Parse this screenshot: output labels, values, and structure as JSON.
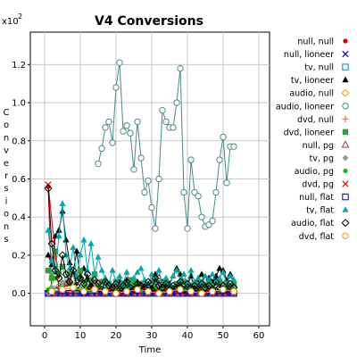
{
  "chart_data": {
    "type": "line",
    "title": "V4 Conversions",
    "xlabel": "Time",
    "ylabel": "Conversions",
    "y_multiplier": "x10",
    "y_exponent": "2",
    "xlim": [
      -4,
      63
    ],
    "ylim": [
      -0.17,
      1.37
    ],
    "x_ticks": [
      "0",
      "10",
      "20",
      "30",
      "40",
      "50",
      "60"
    ],
    "y_ticks": [
      "0.0",
      "0.2",
      "0.4",
      "0.6",
      "0.8",
      "1.0",
      "1.2"
    ],
    "grid": true,
    "legend_position": "right",
    "series": [
      {
        "name": "null, null",
        "color": "#e00000",
        "marker": "dot",
        "x": [
          1,
          2,
          3,
          4,
          5,
          6,
          7,
          8,
          9,
          10,
          11,
          12,
          13,
          14,
          15,
          16,
          17,
          18,
          19,
          20,
          21,
          22,
          23,
          24,
          25,
          26,
          27,
          28,
          29,
          30,
          31,
          32,
          33,
          34,
          35,
          36,
          37,
          38,
          39,
          40,
          41,
          42,
          43,
          44,
          45,
          46,
          47,
          48,
          49,
          50,
          51,
          52,
          53
        ],
        "y": [
          0.56,
          0,
          0,
          0,
          0,
          0,
          0,
          0,
          0,
          0,
          0,
          0,
          0,
          0,
          0,
          0,
          0,
          0,
          0,
          0,
          0,
          0,
          0,
          0,
          0,
          0,
          0,
          0,
          0,
          0,
          0,
          0,
          0,
          0,
          0,
          0,
          0,
          0,
          0,
          0,
          0,
          0,
          0,
          0,
          0,
          0,
          0,
          0,
          0,
          0,
          0,
          0,
          0
        ]
      },
      {
        "name": "null, lioneer",
        "color": "#0000cc",
        "marker": "x",
        "x": [
          1,
          3,
          5,
          7,
          9,
          11,
          13,
          15,
          17,
          19,
          21,
          23,
          25,
          27,
          29,
          31,
          33,
          35,
          37,
          39,
          41,
          43,
          45,
          47,
          49,
          51,
          53
        ],
        "y": [
          0,
          0,
          0,
          0,
          0,
          0,
          0,
          0,
          0,
          0,
          0,
          0,
          0,
          0,
          0,
          0,
          0,
          0,
          0,
          0,
          0,
          0,
          0,
          0,
          0,
          0,
          0
        ]
      },
      {
        "name": "tv, null",
        "color": "#009090",
        "marker": "square",
        "x": [
          1,
          3,
          5,
          7,
          9,
          11,
          13,
          15,
          17,
          19,
          21,
          23,
          25,
          27,
          29,
          31,
          33,
          35,
          37,
          39,
          41,
          43,
          45,
          47,
          49,
          51,
          53
        ],
        "y": [
          0,
          0.01,
          0,
          0,
          0.01,
          0,
          0,
          0,
          0,
          0,
          0,
          0,
          0,
          0.01,
          0,
          0,
          0,
          0,
          0,
          0,
          0,
          0,
          0,
          0,
          0,
          0,
          0
        ]
      },
      {
        "name": "tv, lioneer",
        "color": "#000000",
        "marker": "tri",
        "x": [
          1,
          2,
          3,
          4,
          5,
          6,
          7,
          8,
          9,
          10,
          11,
          12,
          13,
          14,
          15,
          16,
          17,
          18,
          19,
          20,
          21,
          22,
          23,
          24,
          25,
          26,
          27,
          28,
          29,
          30,
          31,
          32,
          33,
          34,
          35,
          36,
          37,
          38,
          39,
          40,
          41,
          42,
          43,
          44,
          45,
          46,
          47,
          48,
          49,
          50,
          51,
          52,
          53
        ],
        "y": [
          0.2,
          0.15,
          0.3,
          0.33,
          0.43,
          0.28,
          0.16,
          0.11,
          0.22,
          0.09,
          0.13,
          0.07,
          0.05,
          0.1,
          0.02,
          0.06,
          0.07,
          0.05,
          0.03,
          0.04,
          0.06,
          0.03,
          0.07,
          0.02,
          0.05,
          0.06,
          0.05,
          0.03,
          0.04,
          0.03,
          0.1,
          0.05,
          0.06,
          0.04,
          0.05,
          0.09,
          0.13,
          0.1,
          0.06,
          0.04,
          0.09,
          0.03,
          0.07,
          0.1,
          0.04,
          0.08,
          0.06,
          0.09,
          0.13,
          0.12,
          0.07,
          0.1,
          0.05
        ]
      },
      {
        "name": "audio, null",
        "color": "#ff9900",
        "marker": "diamond",
        "x": [
          2,
          5,
          8,
          11,
          14,
          17,
          20,
          23,
          26,
          29,
          32,
          35,
          38,
          41,
          44,
          47,
          50,
          53
        ],
        "y": [
          0,
          0,
          0,
          0.01,
          0,
          0,
          0,
          0,
          0,
          0,
          0.01,
          0,
          0,
          0,
          0,
          0,
          0,
          0
        ]
      },
      {
        "name": "audio, lioneer",
        "color": "#4a8a8a",
        "marker": "circle",
        "x": [
          15,
          16,
          17,
          18,
          19,
          20,
          21,
          22,
          23,
          24,
          25,
          26,
          27,
          28,
          29,
          30,
          31,
          32,
          33,
          34,
          35,
          36,
          37,
          38,
          39,
          40,
          41,
          42,
          43,
          44,
          45,
          46,
          47,
          48,
          49,
          50,
          51,
          52,
          53
        ],
        "y": [
          0.68,
          0.76,
          0.87,
          0.9,
          0.79,
          1.08,
          1.21,
          0.85,
          0.88,
          0.84,
          0.65,
          0.9,
          0.71,
          0.53,
          0.59,
          0.45,
          0.34,
          0.6,
          0.96,
          0.9,
          0.87,
          0.87,
          1.0,
          1.18,
          0.53,
          0.34,
          0.7,
          0.53,
          0.51,
          0.4,
          0.35,
          0.36,
          0.38,
          0.53,
          0.7,
          0.82,
          0.58,
          0.77,
          0.77
        ]
      },
      {
        "name": "dvd, null",
        "color": "#ff6a30",
        "marker": "plus",
        "x": [
          1,
          4,
          7,
          10,
          13,
          16,
          19,
          22,
          25,
          28,
          31,
          34,
          37,
          40,
          43,
          46,
          49,
          52
        ],
        "y": [
          0,
          0,
          0.01,
          0,
          0,
          0,
          0,
          0,
          0.01,
          0,
          0,
          0,
          0,
          0,
          0,
          0,
          0,
          0
        ]
      },
      {
        "name": "dvd, lioneer",
        "color": "#3a9a3a",
        "marker": "fsquare",
        "x": [
          1,
          2,
          3,
          4,
          5,
          6,
          7,
          8,
          9,
          10,
          11,
          12,
          13,
          14,
          15,
          16,
          17,
          18,
          19,
          20,
          21,
          22,
          23,
          24,
          25,
          26,
          27,
          28,
          29,
          30,
          31,
          32,
          33,
          34,
          35,
          36,
          37,
          38,
          39,
          40,
          41,
          42,
          43,
          44,
          45,
          46,
          47,
          48,
          49,
          50,
          51,
          52,
          53
        ],
        "y": [
          0.12,
          0.08,
          0.22,
          0.1,
          0.14,
          0.05,
          0.1,
          0.04,
          0.08,
          0.12,
          0.06,
          0.03,
          0.07,
          0.1,
          0.04,
          0.06,
          0.02,
          0.05,
          0.03,
          0.06,
          0.04,
          0.05,
          0.02,
          0.07,
          0.06,
          0.03,
          0.05,
          0.04,
          0.02,
          0.06,
          0.05,
          0.03,
          0.04,
          0.06,
          0.02,
          0.03,
          0.05,
          0.04,
          0.06,
          0.03,
          0.02,
          0.05,
          0.04,
          0.06,
          0.03,
          0.05,
          0.04,
          0.02,
          0.06,
          0.05,
          0.03,
          0.04,
          0.05
        ]
      },
      {
        "name": "null, pg",
        "color": "#884444",
        "marker": "otri",
        "x": [
          2,
          5,
          8,
          11,
          14,
          17,
          20,
          23,
          26,
          29,
          32,
          35,
          38,
          41,
          44,
          47,
          50,
          53
        ],
        "y": [
          0.02,
          0.05,
          0.1,
          0.03,
          0.02,
          0.01,
          0.03,
          0.01,
          0.02,
          0.04,
          0.08,
          0.03,
          0.02,
          0.01,
          0.03,
          0.02,
          0.01,
          0.02
        ]
      },
      {
        "name": "tv, pg",
        "color": "#999999",
        "marker": "fdiamond",
        "x": [
          2,
          5,
          8,
          11,
          14,
          17,
          20,
          23,
          26,
          29,
          32,
          35,
          38,
          41,
          44,
          47,
          50,
          53
        ],
        "y": [
          0.03,
          0.06,
          0.04,
          0.05,
          0.03,
          0.02,
          0.04,
          0.03,
          0.02,
          0.05,
          0.04,
          0.03,
          0.02,
          0.04,
          0.03,
          0.02,
          0.04,
          0.03
        ]
      },
      {
        "name": "audio, pg",
        "color": "#00cc00",
        "marker": "dot",
        "x": [
          1,
          3,
          5,
          7,
          9,
          11,
          13,
          15,
          17,
          19,
          21,
          23,
          25,
          27,
          29,
          31,
          33,
          35,
          37,
          39,
          41,
          43,
          45,
          47,
          49,
          51,
          53
        ],
        "y": [
          0.02,
          0.08,
          0.03,
          0.05,
          0.02,
          0.04,
          0.01,
          0.03,
          0.02,
          0.01,
          0.03,
          0.02,
          0.04,
          0.02,
          0.01,
          0.03,
          0.02,
          0.01,
          0.03,
          0.02,
          0.04,
          0.01,
          0.03,
          0.02,
          0.01,
          0.03,
          0.02
        ]
      },
      {
        "name": "dvd, pg",
        "color": "#dd0000",
        "marker": "x",
        "x": [
          1,
          4,
          7,
          10,
          13,
          16,
          19,
          22,
          25,
          28,
          31,
          34,
          37,
          40,
          43,
          46,
          49,
          52
        ],
        "y": [
          0.57,
          0.02,
          0.05,
          0.01,
          0.03,
          0.01,
          0.02,
          0,
          0.01,
          0.03,
          0.01,
          0.02,
          0.01,
          0,
          0.02,
          0.01,
          0,
          0.01
        ]
      },
      {
        "name": "null, flat",
        "color": "#0000cc",
        "marker": "square",
        "x": [
          1,
          3,
          5,
          7,
          9,
          11,
          13,
          15,
          17,
          19,
          21,
          23,
          25,
          27,
          29,
          31,
          33,
          35,
          37,
          39,
          41,
          43,
          45,
          47,
          49,
          51,
          53
        ],
        "y": [
          0,
          0,
          0,
          0,
          0,
          0,
          0,
          0,
          0,
          0,
          0,
          0,
          0,
          0,
          0,
          0,
          0,
          0,
          0,
          0,
          0,
          0,
          0,
          0,
          0,
          0,
          0
        ]
      },
      {
        "name": "tv, flat",
        "color": "#00aaaa",
        "marker": "tri",
        "x": [
          1,
          2,
          3,
          4,
          5,
          6,
          7,
          8,
          9,
          10,
          11,
          12,
          13,
          14,
          15,
          16,
          17,
          18,
          19,
          20,
          21,
          22,
          23,
          24,
          25,
          26,
          27,
          28,
          29,
          30,
          31,
          32,
          33,
          34,
          35,
          36,
          37,
          38,
          39,
          40,
          41,
          42,
          43,
          44,
          45,
          46,
          47,
          48,
          49,
          50,
          51,
          52,
          53
        ],
        "y": [
          0.33,
          0.17,
          0.11,
          0.3,
          0.47,
          0.2,
          0.13,
          0.24,
          0.09,
          0.2,
          0.28,
          0.12,
          0.26,
          0.1,
          0.19,
          0.12,
          0.08,
          0.05,
          0.12,
          0.06,
          0.09,
          0.05,
          0.11,
          0.04,
          0.08,
          0.11,
          0.13,
          0.07,
          0.05,
          0.1,
          0.07,
          0.12,
          0.05,
          0.08,
          0.04,
          0.09,
          0.12,
          0.07,
          0.1,
          0.05,
          0.12,
          0.06,
          0.08,
          0.05,
          0.09,
          0.07,
          0.1,
          0.06,
          0.08,
          0.11,
          0.05,
          0.09,
          0.07
        ]
      },
      {
        "name": "audio, flat",
        "color": "#000000",
        "marker": "diamond",
        "x": [
          1,
          2,
          3,
          4,
          5,
          6,
          7,
          8,
          9,
          10,
          11,
          12,
          13,
          14,
          15,
          16,
          17,
          18,
          19,
          20,
          21,
          22,
          23,
          24,
          25,
          26,
          27,
          28,
          29,
          30,
          31,
          32,
          33,
          34,
          35,
          36,
          37,
          38,
          39,
          40,
          41,
          42,
          43,
          44,
          45,
          46,
          47,
          48,
          49,
          50,
          51,
          52,
          53
        ],
        "y": [
          0.55,
          0.26,
          0.12,
          0.08,
          0.2,
          0.1,
          0.06,
          0.12,
          0.04,
          0.08,
          0.05,
          0.1,
          0.03,
          0.07,
          0.05,
          0.02,
          0.06,
          0.04,
          0.03,
          0.05,
          0.02,
          0.04,
          0.06,
          0.03,
          0.02,
          0.05,
          0.04,
          0.03,
          0.06,
          0.02,
          0.08,
          0.04,
          0.03,
          0.05,
          0.02,
          0.04,
          0.03,
          0.06,
          0.02,
          0.05,
          0.03,
          0.04,
          0.02,
          0.05,
          0.03,
          0.04,
          0.02,
          0.06,
          0.03,
          0.04,
          0.02,
          0.05,
          0.03
        ]
      },
      {
        "name": "dvd, flat",
        "color": "#ff9900",
        "marker": "circle",
        "x": [
          2,
          5,
          8,
          11,
          14,
          17,
          20,
          23,
          26,
          29,
          32,
          35,
          38,
          41,
          44,
          47,
          50,
          53
        ],
        "y": [
          0.01,
          0.02,
          0.03,
          0.01,
          0.02,
          0.01,
          0,
          0.01,
          0.02,
          0.01,
          0,
          0.01,
          0.02,
          0.01,
          0,
          0.01,
          0.02,
          0.01
        ]
      }
    ]
  }
}
